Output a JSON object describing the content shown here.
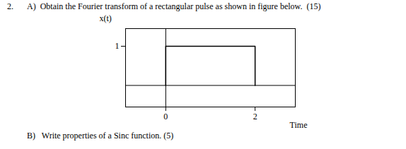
{
  "chart_data": {
    "type": "line",
    "title": "2.",
    "subtitle": "A)  Obtain the Fourier transform of a rectangular pulse as shown in figure below.  (15)",
    "annotations": [
      "B)   Write properties of a Sinc function. (5)"
    ],
    "x": [
      0,
      0,
      2,
      2
    ],
    "values": [
      0,
      1,
      1,
      0
    ],
    "color": "#000000",
    "xlabel": "Time",
    "ylabel": "x(t)",
    "xlim": [
      -0.9,
      2.9
    ],
    "ylim": [
      -0.55,
      1.45
    ],
    "xticks": [
      0,
      2
    ],
    "yticks": [
      1
    ],
    "grid": false
  }
}
